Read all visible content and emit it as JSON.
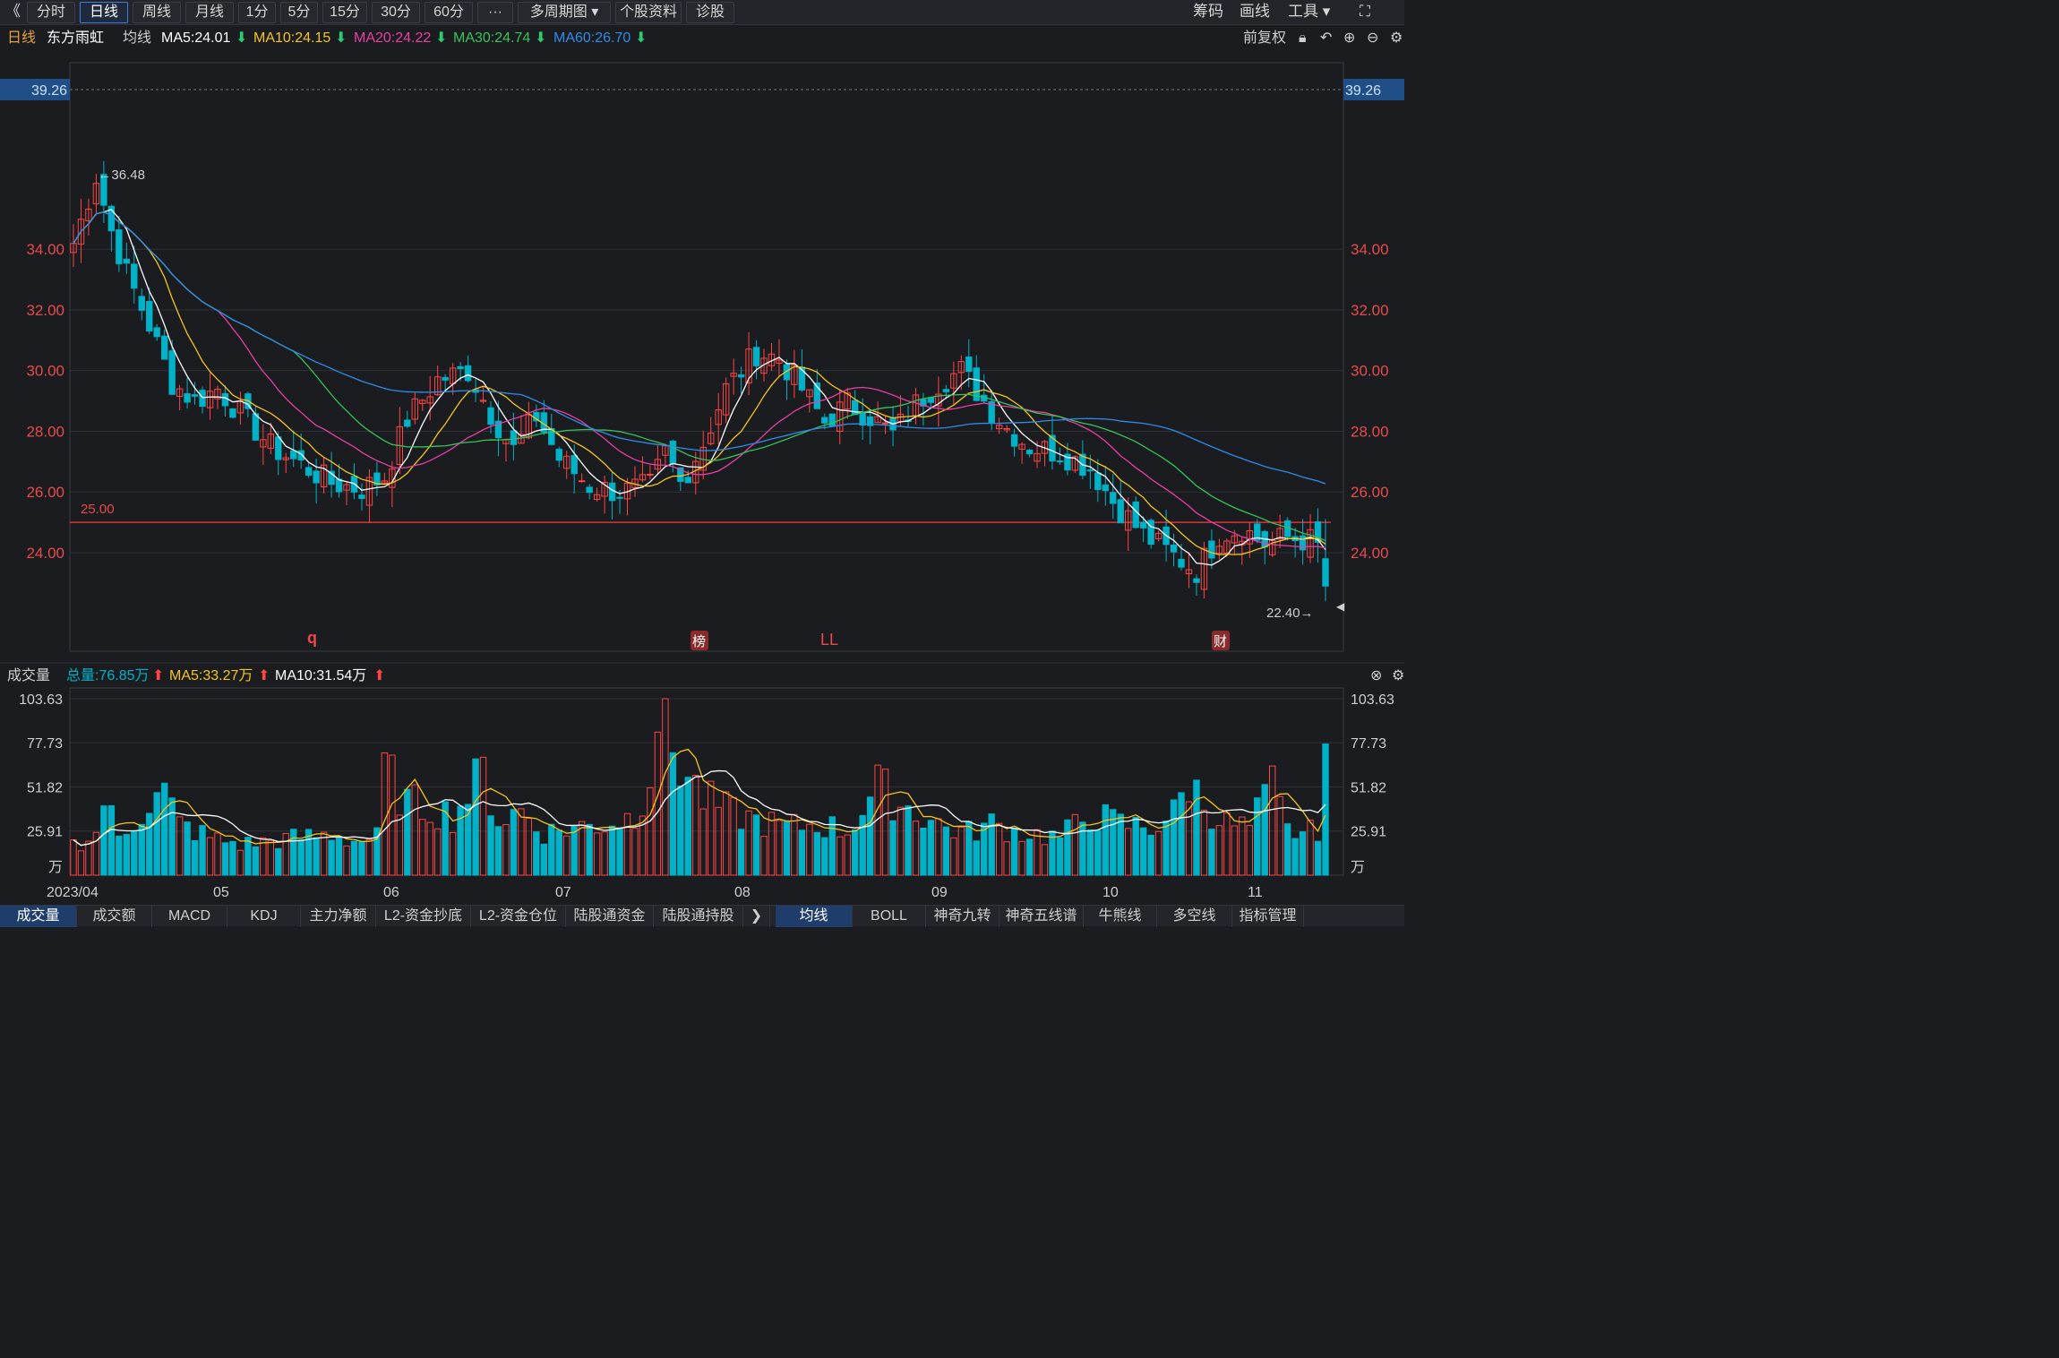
{
  "toolbar": {
    "back": "《",
    "tabs": [
      "分时",
      "日线",
      "周线",
      "月线",
      "1分",
      "5分",
      "15分",
      "30分",
      "60分",
      "···",
      "多周期图",
      "个股资料",
      "诊股"
    ],
    "active_tab": "日线",
    "right": [
      "筹码",
      "画线",
      "工具"
    ]
  },
  "info": {
    "period": "日线",
    "stock_name": "东方雨虹",
    "ma_label": "均线",
    "ma5": "MA5:24.01",
    "ma10": "MA10:24.15",
    "ma20": "MA20:24.22",
    "ma30": "MA30:24.74",
    "ma60": "MA60:26.70",
    "adjust": "前复权"
  },
  "volume_info": {
    "label": "成交量",
    "total": "总量:76.85万",
    "ma5": "MA5:33.27万",
    "ma10": "MA10:31.54万"
  },
  "colors": {
    "up": "#ff4444",
    "down": "#00b2c8",
    "ma5": "#ffffff",
    "ma10": "#f5c518",
    "ma20": "#e83ea6",
    "ma30": "#36c35a",
    "ma60": "#2d8ce8",
    "price_label": "#e84a4a"
  },
  "chart_data": [
    {
      "type": "candlestick",
      "y_ticks": [
        "34.00",
        "32.00",
        "30.00",
        "28.00",
        "26.00",
        "24.00"
      ],
      "ylim": [
        22.4,
        39.26
      ],
      "top_label": "39.26",
      "high_marker": "←36.48",
      "low_marker": "22.40→",
      "line_label": "25.00",
      "markers": [
        "q",
        "榜",
        "LL",
        "财"
      ],
      "x_labels": [
        "2023/04",
        "05",
        "06",
        "07",
        "08",
        "09",
        "10",
        "11"
      ],
      "anchors": [
        [
          0,
          34.2
        ],
        [
          3,
          36.4
        ],
        [
          5,
          34.6
        ],
        [
          7,
          33.2
        ],
        [
          10,
          31.5
        ],
        [
          13,
          29.6
        ],
        [
          16,
          29.0
        ],
        [
          19,
          29.4
        ],
        [
          22,
          28.6
        ],
        [
          26,
          27.5
        ],
        [
          30,
          26.9
        ],
        [
          34,
          26.3
        ],
        [
          38,
          26.1
        ],
        [
          41,
          26.5
        ],
        [
          44,
          28.4
        ],
        [
          48,
          29.7
        ],
        [
          52,
          30.0
        ],
        [
          55,
          28.6
        ],
        [
          58,
          27.4
        ],
        [
          61,
          28.5
        ],
        [
          64,
          27.1
        ],
        [
          68,
          26.2
        ],
        [
          72,
          26.0
        ],
        [
          76,
          26.2
        ],
        [
          78,
          27.3
        ],
        [
          80,
          26.3
        ],
        [
          83,
          27.6
        ],
        [
          86,
          29.4
        ],
        [
          90,
          30.6
        ],
        [
          93,
          30.4
        ],
        [
          96,
          29.4
        ],
        [
          99,
          28.3
        ],
        [
          102,
          28.9
        ],
        [
          105,
          28.5
        ],
        [
          108,
          27.9
        ],
        [
          111,
          28.9
        ],
        [
          114,
          29.6
        ],
        [
          117,
          30.0
        ],
        [
          120,
          29.0
        ],
        [
          123,
          28.1
        ],
        [
          126,
          27.5
        ],
        [
          130,
          27.3
        ],
        [
          134,
          26.8
        ],
        [
          137,
          25.7
        ],
        [
          141,
          24.6
        ],
        [
          145,
          23.9
        ],
        [
          148,
          23.4
        ],
        [
          151,
          24.6
        ],
        [
          154,
          24.8
        ],
        [
          157,
          24.3
        ],
        [
          160,
          24.5
        ],
        [
          163,
          24.4
        ],
        [
          164,
          24.2
        ],
        [
          165,
          23.2
        ]
      ]
    },
    {
      "type": "bar",
      "name": "成交量",
      "y_ticks": [
        "103.63",
        "77.73",
        "51.82",
        "25.91",
        "万"
      ],
      "ylim": [
        0,
        103.63
      ],
      "volume_anchors": [
        [
          0,
          18
        ],
        [
          3,
          24
        ],
        [
          4,
          45
        ],
        [
          6,
          22
        ],
        [
          9,
          38
        ],
        [
          12,
          48
        ],
        [
          14,
          30
        ],
        [
          18,
          22
        ],
        [
          22,
          18
        ],
        [
          26,
          20
        ],
        [
          30,
          22
        ],
        [
          34,
          24
        ],
        [
          37,
          20
        ],
        [
          40,
          22
        ],
        [
          41,
          63
        ],
        [
          44,
          42
        ],
        [
          47,
          40
        ],
        [
          50,
          35
        ],
        [
          54,
          60
        ],
        [
          56,
          32
        ],
        [
          59,
          38
        ],
        [
          62,
          25
        ],
        [
          66,
          28
        ],
        [
          70,
          30
        ],
        [
          74,
          35
        ],
        [
          76,
          62
        ],
        [
          78,
          84
        ],
        [
          80,
          65
        ],
        [
          83,
          45
        ],
        [
          86,
          38
        ],
        [
          90,
          32
        ],
        [
          94,
          28
        ],
        [
          98,
          30
        ],
        [
          102,
          26
        ],
        [
          106,
          52
        ],
        [
          109,
          42
        ],
        [
          112,
          35
        ],
        [
          115,
          28
        ],
        [
          118,
          25
        ],
        [
          121,
          30
        ],
        [
          124,
          26
        ],
        [
          127,
          24
        ],
        [
          130,
          22
        ],
        [
          134,
          36
        ],
        [
          138,
          30
        ],
        [
          142,
          28
        ],
        [
          145,
          36
        ],
        [
          147,
          55
        ],
        [
          149,
          42
        ],
        [
          152,
          30
        ],
        [
          155,
          28
        ],
        [
          158,
          52
        ],
        [
          160,
          26
        ],
        [
          163,
          25
        ],
        [
          164,
          28
        ],
        [
          165,
          77
        ]
      ]
    }
  ],
  "bottom_tabs": [
    "成交量",
    "成交额",
    "MACD",
    "KDJ",
    "主力净额",
    "L2-资金抄底",
    "L2-资金仓位",
    "陆股通资金",
    "陆股通持股",
    "均线",
    "BOLL",
    "神奇九转",
    "神奇五线谱",
    "牛熊线",
    "多空线",
    "指标管理"
  ],
  "bottom_active": [
    "成交量",
    "均线"
  ]
}
